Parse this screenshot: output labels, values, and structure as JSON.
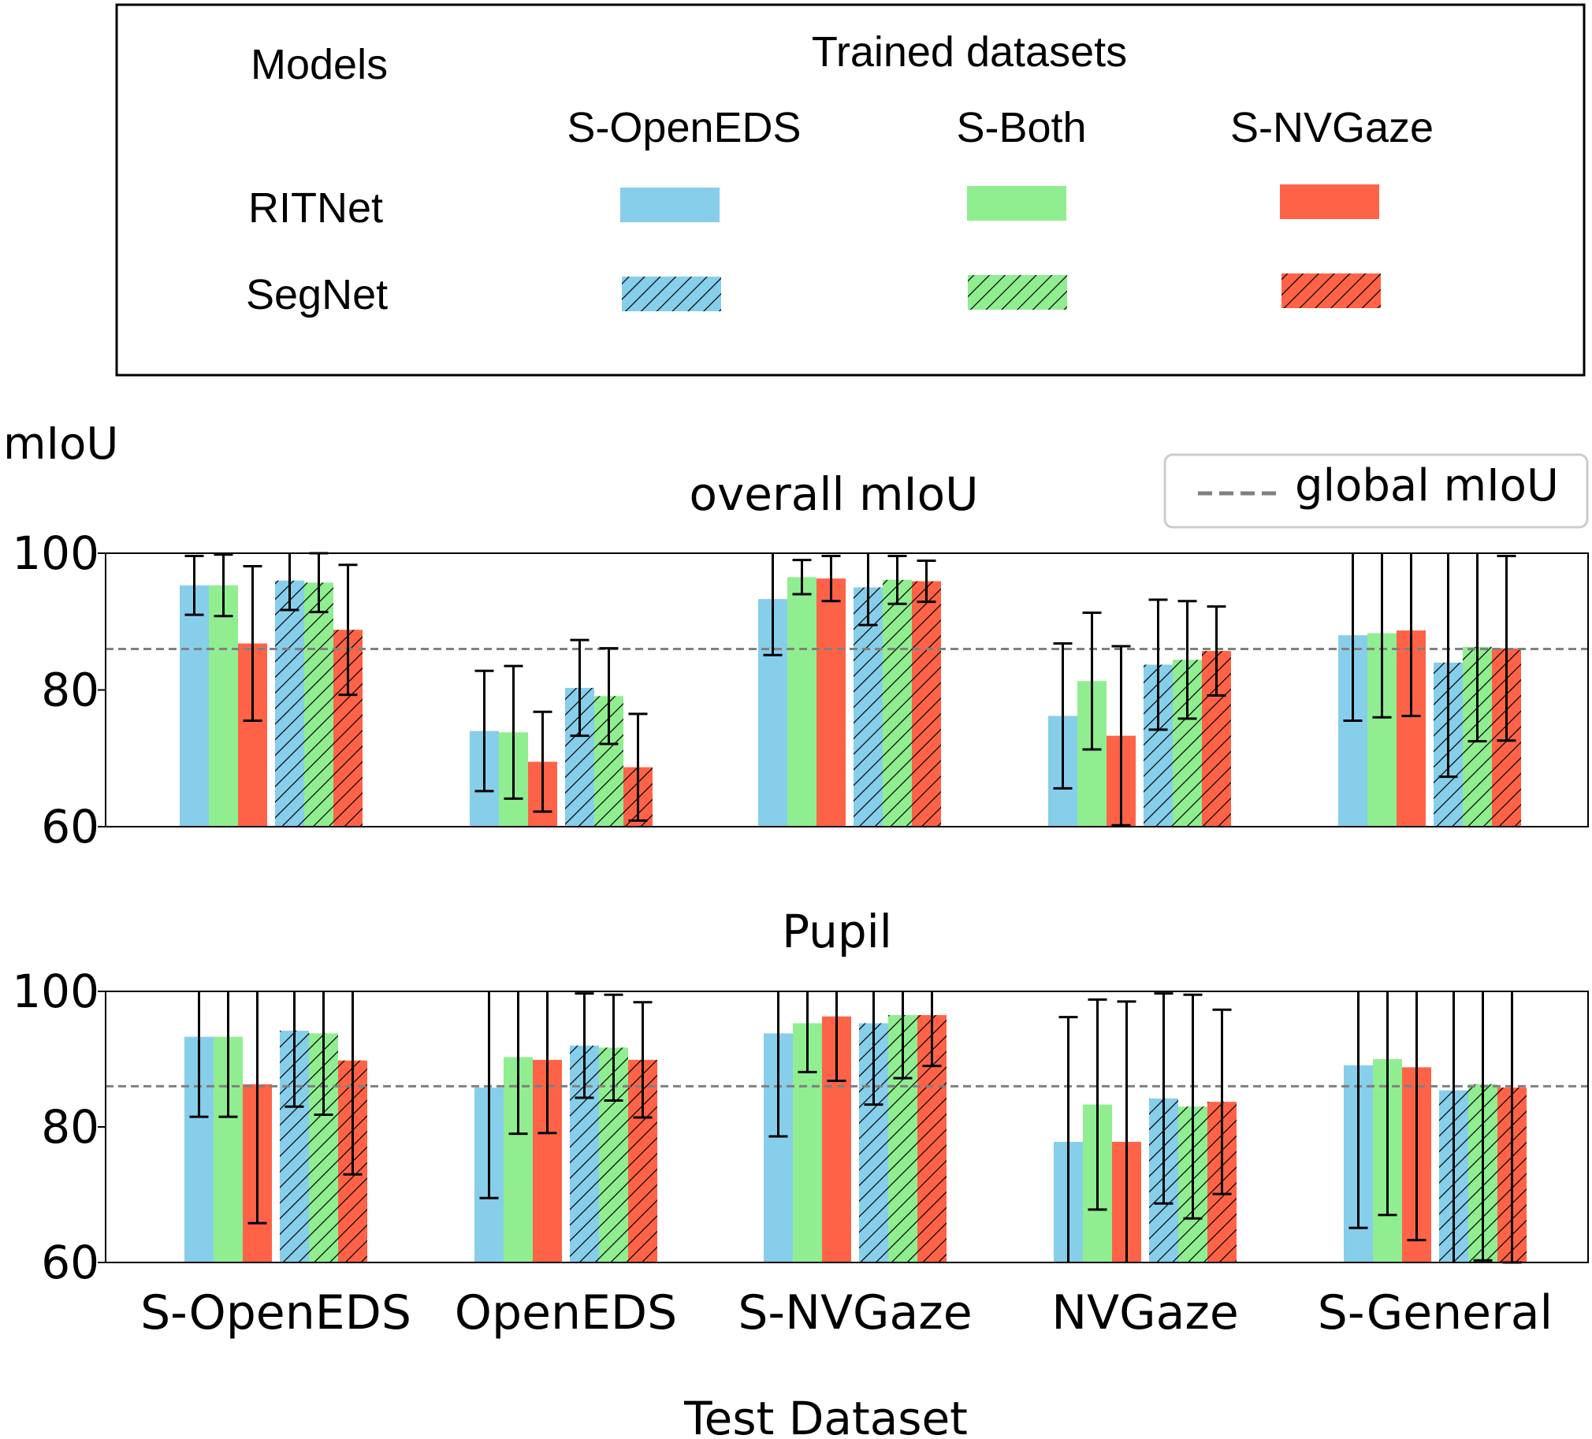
{
  "legend": {
    "models_label": "Models",
    "trained_label": "Trained datasets",
    "model_names": [
      "RITNet",
      "SegNet"
    ],
    "dataset_names": [
      "S-OpenEDS",
      "S-Both",
      "S-NVGaze"
    ]
  },
  "y_unit_label": "mIoU",
  "global_legend_label": "global mIoU",
  "xlabel": "Test Dataset",
  "colors": {
    "S-OpenEDS": "#87ceeb",
    "S-Both": "#90ee90",
    "S-NVGaze": "#ff6347",
    "global_line": "#808080"
  },
  "chart_data": [
    {
      "type": "bar",
      "title": "overall mIoU",
      "ylabel": "mIoU",
      "xlabel": "Test Dataset",
      "ylim": [
        60,
        100
      ],
      "yticks": [
        60,
        80,
        100
      ],
      "categories": [
        "S-OpenEDS",
        "OpenEDS",
        "S-NVGaze",
        "NVGaze",
        "S-General"
      ],
      "global_miou": 86,
      "series": [
        {
          "model": "RITNet",
          "trained": "S-OpenEDS",
          "values": [
            95.3,
            74.0,
            93.3,
            76.2,
            88.0
          ],
          "errors": [
            4.3,
            8.8,
            8.2,
            10.6,
            12.5
          ]
        },
        {
          "model": "RITNet",
          "trained": "S-Both",
          "values": [
            95.3,
            73.8,
            96.5,
            81.3,
            88.3
          ],
          "errors": [
            4.5,
            9.7,
            2.5,
            10.0,
            12.3
          ]
        },
        {
          "model": "RITNet",
          "trained": "S-NVGaze",
          "values": [
            86.8,
            69.5,
            96.3,
            73.3,
            88.7
          ],
          "errors": [
            11.3,
            7.3,
            3.3,
            13.1,
            12.5
          ]
        },
        {
          "model": "SegNet",
          "trained": "S-OpenEDS",
          "values": [
            96.0,
            80.3,
            95.0,
            83.7,
            84.0
          ],
          "errors": [
            4.3,
            7.0,
            5.5,
            9.5,
            16.7
          ]
        },
        {
          "model": "SegNet",
          "trained": "S-Both",
          "values": [
            95.7,
            79.1,
            96.1,
            84.4,
            86.3
          ],
          "errors": [
            4.3,
            7.0,
            3.5,
            8.6,
            13.8
          ]
        },
        {
          "model": "SegNet",
          "trained": "S-NVGaze",
          "values": [
            88.8,
            68.7,
            95.9,
            85.7,
            86.1
          ],
          "errors": [
            9.5,
            7.8,
            3.0,
            6.5,
            13.5
          ]
        }
      ]
    },
    {
      "type": "bar",
      "title": "Pupil",
      "ylabel": "mIoU",
      "xlabel": "Test Dataset",
      "ylim": [
        60,
        100
      ],
      "yticks": [
        60,
        80,
        100
      ],
      "categories": [
        "S-OpenEDS",
        "OpenEDS",
        "S-NVGaze",
        "NVGaze",
        "S-General"
      ],
      "global_miou": 86,
      "series": [
        {
          "model": "RITNet",
          "trained": "S-OpenEDS",
          "values": [
            93.3,
            85.8,
            93.8,
            77.8,
            89.1
          ],
          "errors": [
            11.8,
            16.3,
            15.2,
            18.4,
            24.0
          ]
        },
        {
          "model": "RITNet",
          "trained": "S-Both",
          "values": [
            93.3,
            90.3,
            95.3,
            83.3,
            90.0
          ],
          "errors": [
            11.8,
            11.3,
            7.2,
            15.5,
            23.0
          ]
        },
        {
          "model": "RITNet",
          "trained": "S-NVGaze",
          "values": [
            86.3,
            89.9,
            96.3,
            77.8,
            88.8
          ],
          "errors": [
            20.5,
            10.8,
            9.5,
            20.7,
            25.5
          ]
        },
        {
          "model": "SegNet",
          "trained": "S-OpenEDS",
          "values": [
            94.2,
            92.0,
            95.3,
            84.2,
            85.4
          ],
          "errors": [
            11.2,
            7.7,
            12.0,
            15.5,
            25.5
          ]
        },
        {
          "model": "SegNet",
          "trained": "S-Both",
          "values": [
            93.8,
            91.7,
            96.5,
            83.0,
            86.3
          ],
          "errors": [
            12.0,
            7.8,
            9.3,
            16.5,
            26.0
          ]
        },
        {
          "model": "SegNet",
          "trained": "S-NVGaze",
          "values": [
            89.8,
            89.9,
            96.5,
            83.7,
            85.8
          ],
          "errors": [
            16.8,
            8.5,
            7.5,
            13.6,
            25.8
          ]
        }
      ]
    }
  ]
}
